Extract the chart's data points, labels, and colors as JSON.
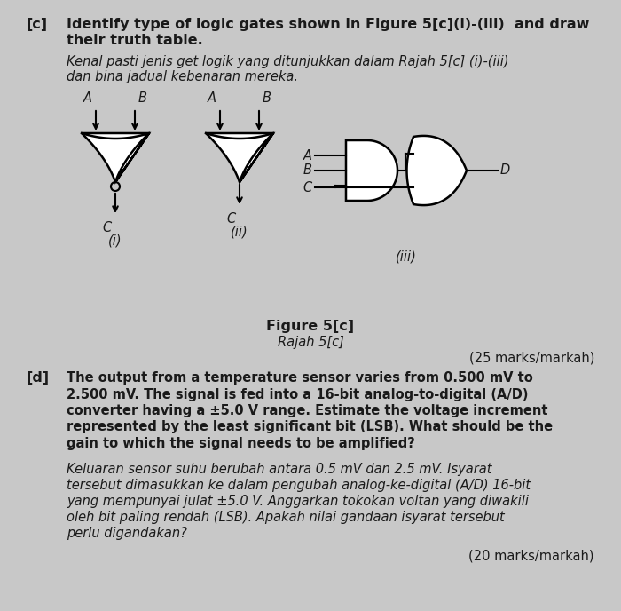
{
  "bg_color": "#c8c8c8",
  "paper_color": "#e8e6e2",
  "text_color": "#1a1a1a",
  "line1_c": "Identify type of logic gates shown in Figure 5[c](i)-(iii)  and draw",
  "line2_c": "their truth table.",
  "italic1_c": "Kenal pasti jenis get logik yang ditunjukkan dalam Rajah 5[c] (i)-(iii)",
  "italic2_c": "dan bina jadual kebenaran mereka.",
  "figure_label": "Figure 5[c]",
  "figure_label_italic": "Rajah 5[c]",
  "marks_c": "(25 marks/markah)",
  "d_line1": "The output from a temperature sensor varies from 0.500 mV to",
  "d_line2": "2.500 mV. The signal is fed into a 16-bit analog-to-digital (A/D)",
  "d_line3": "converter having a ±5.0 V range. Estimate the voltage increment",
  "d_line4": "represented by the least significant bit (LSB). What should be the",
  "d_line5": "gain to which the signal needs to be amplified?",
  "i_line1": "Keluaran sensor suhu berubah antara 0.5 mV dan 2.5 mV. Isyarat",
  "i_line2": "tersebut dimasukkan ke dalam pengubah analog-ke-digital (A/D) 16-bit",
  "i_line3": "yang mempunyai julat ±5.0 V. Anggarkan tokokan voltan yang diwakili",
  "i_line4": "oleh bit paling rendah (LSB). Apakah nilai gandaan isyarat tersebut",
  "i_line5": "perlu digandakan?",
  "marks_d": "(20 marks/markah)"
}
